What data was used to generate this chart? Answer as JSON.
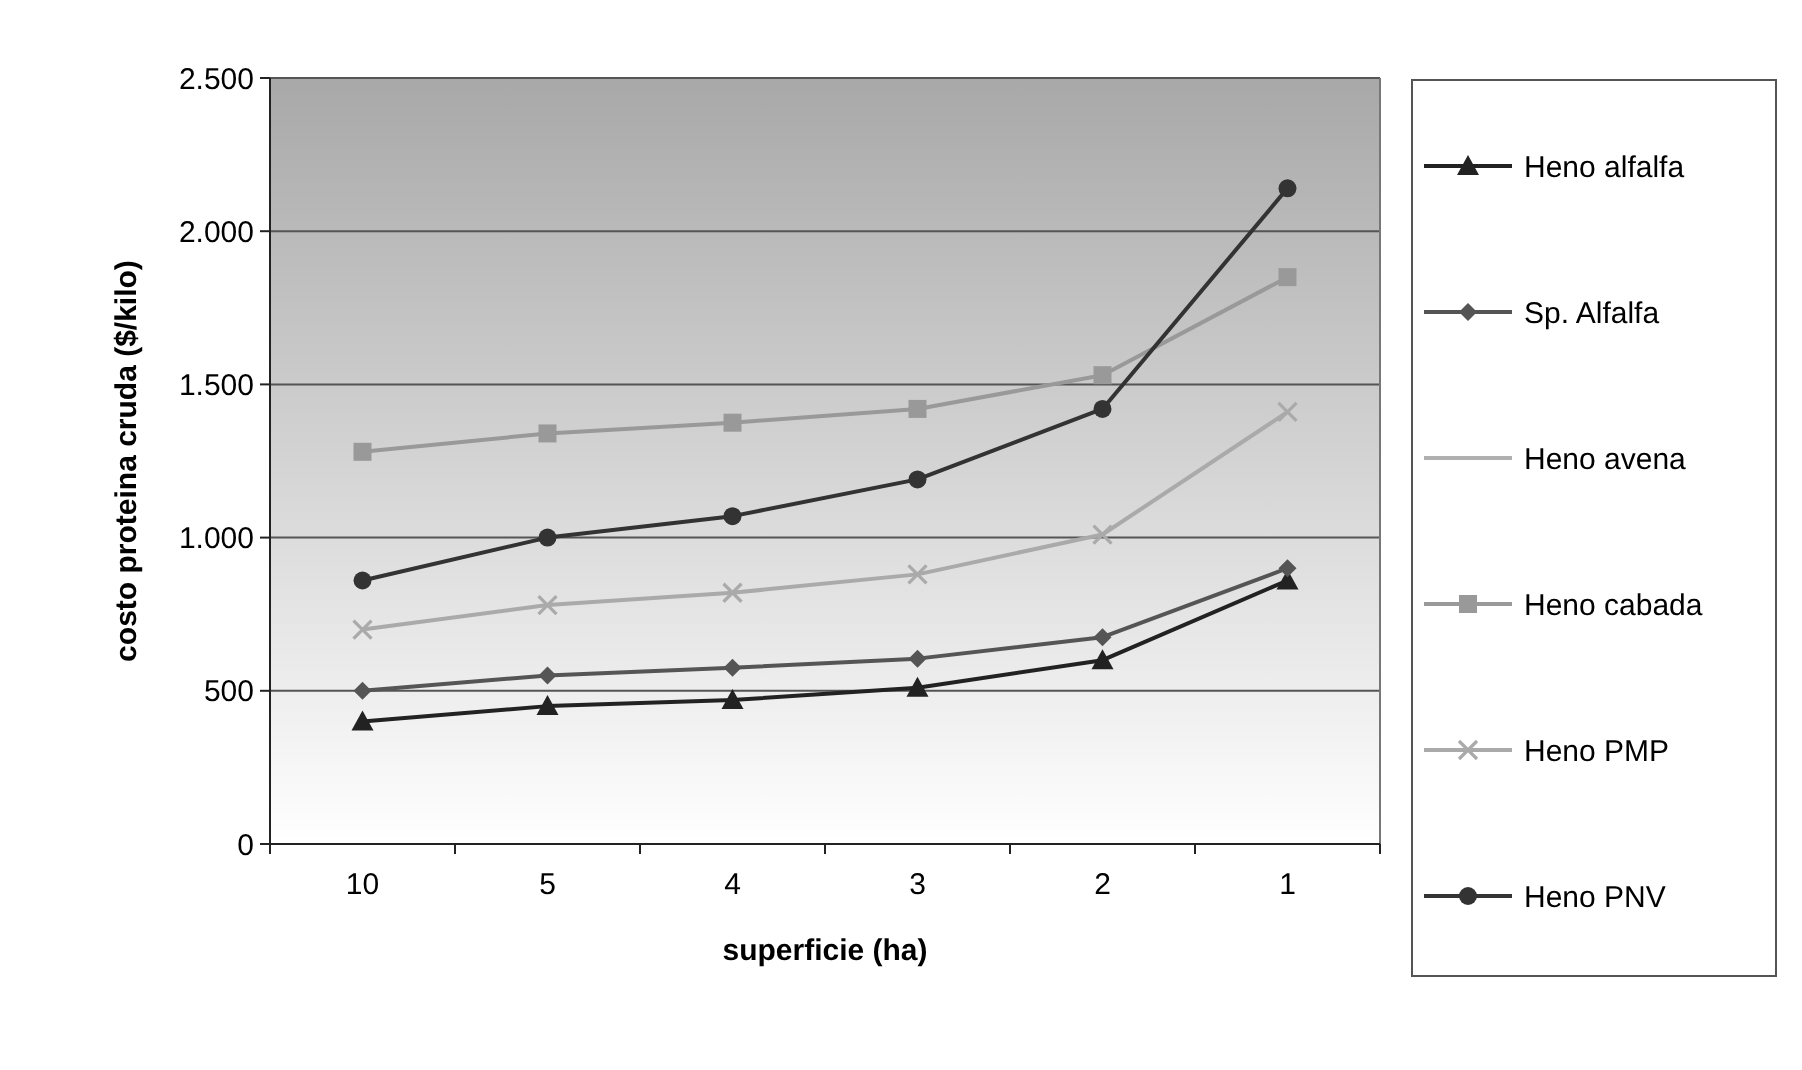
{
  "chart_data": {
    "type": "line",
    "xlabel": "superficie (ha)",
    "ylabel": "costo proteina cruda ($/kilo)",
    "categories": [
      "10",
      "5",
      "4",
      "3",
      "2",
      "1"
    ],
    "ylim": [
      0,
      2500
    ],
    "yticks": [
      0,
      500,
      {
        "value": 1000,
        "label": "1.000"
      },
      {
        "value": 1500,
        "label": "1.500"
      },
      {
        "value": 2000,
        "label": "2.000"
      },
      {
        "value": 2500,
        "label": "2.500"
      }
    ],
    "grid": "y",
    "legend": "right",
    "series": [
      {
        "name": "Heno alfalfa",
        "color": "#222222",
        "marker": "triangle",
        "values": [
          400,
          450,
          470,
          510,
          600,
          860
        ]
      },
      {
        "name": "Sp. Alfalfa",
        "color": "#555555",
        "marker": "diamond",
        "values": [
          500,
          550,
          575,
          605,
          675,
          900
        ]
      },
      {
        "name": "Heno avena",
        "color": "#b0b0b0",
        "marker": "none",
        "values": [
          null,
          null,
          null,
          null,
          null,
          null
        ]
      },
      {
        "name": "Heno cabada",
        "color": "#999999",
        "marker": "square",
        "values": [
          1280,
          1340,
          1375,
          1420,
          1530,
          1850
        ]
      },
      {
        "name": "Heno PMP",
        "color": "#aaaaaa",
        "marker": "cross",
        "values": [
          700,
          780,
          820,
          880,
          1010,
          1410
        ]
      },
      {
        "name": "Heno PNV",
        "color": "#333333",
        "marker": "circle",
        "values": [
          860,
          1000,
          1070,
          1190,
          1420,
          2140
        ]
      }
    ]
  }
}
